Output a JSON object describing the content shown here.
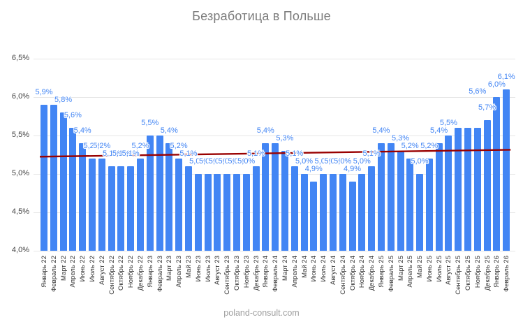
{
  "title": "Безработица в Польше",
  "watermark": "poland-consult.com",
  "colors": {
    "background": "#ffffff",
    "bar": "#4285f4",
    "bar_label": "#4285f4",
    "trendline": "#990000",
    "grid": "#e6e6e6",
    "y_axis_text": "#444444",
    "x_axis_text": "#333333",
    "title_text": "#7b7b7b",
    "watermark_text": "#9e9e9e"
  },
  "chart_data": {
    "type": "bar",
    "title": "Безработица в Польше",
    "xlabel": "",
    "ylabel": "",
    "ylim": [
      4.0,
      6.5
    ],
    "grid": true,
    "legend": "none",
    "y_ticks": [
      6.5,
      6.0,
      5.5,
      5.0,
      4.5,
      4.0
    ],
    "y_tick_labels": [
      "6,5%",
      "6,0%",
      "5,5%",
      "5,0%",
      "4,5%",
      "4,0%"
    ],
    "categories": [
      "Январь 22",
      "Февраль 22",
      "Март 22",
      "Апрель 22",
      "Июнь 22",
      "Июль 22",
      "Август 22",
      "Сентябрь 22",
      "Октябрь 22",
      "Ноябрь 22",
      "Декабрь 22",
      "Январь 23",
      "Февраль 23",
      "Март 23",
      "Апрель 23",
      "Май 23",
      "Июнь 23",
      "Июль 23",
      "Август 23",
      "Сентябрь 23",
      "Октябрь 23",
      "Ноябрь 23",
      "Декабрь 23",
      "Январь 24",
      "Февраль 24",
      "Март 24",
      "Апрель 24",
      "Май 24",
      "Июнь 24",
      "Июль 24",
      "Август 24",
      "Сентябрь 24",
      "Октябрь 24",
      "Ноябрь 24",
      "Декабрь 24",
      "Январь 25",
      "Февраль 25",
      "Март 25",
      "Апрель 25",
      "Май 25",
      "Июнь 25",
      "Июль 25",
      "Август 25",
      "Сентябрь 25",
      "Октябрь 25",
      "Ноябрь 25",
      "Декабрь 25",
      "Январь 26",
      "Февраль 26"
    ],
    "values": [
      5.9,
      5.9,
      5.8,
      5.6,
      5.4,
      5.2,
      5.2,
      5.1,
      5.1,
      5.1,
      5.2,
      5.5,
      5.5,
      5.4,
      5.2,
      5.1,
      5.0,
      5.0,
      5.0,
      5.0,
      5.0,
      5.0,
      5.1,
      5.4,
      5.4,
      5.3,
      5.1,
      5.0,
      4.9,
      5.0,
      5.0,
      5.0,
      4.9,
      5.0,
      5.1,
      5.4,
      5.4,
      5.3,
      5.2,
      5.0,
      5.2,
      5.4,
      5.5,
      5.6,
      5.6,
      5.6,
      5.7,
      6.0,
      6.1
    ],
    "bar_labels": [
      "5,9%",
      "",
      "5,8%",
      "5,6%",
      "5,4%",
      "5,2%",
      "5,2%",
      "5,1%",
      "5,1%",
      "5,1%",
      "5,2%",
      "5,5%",
      "",
      "5,4%",
      "5,2%",
      "5,1%",
      "5,0%",
      "5,0%",
      "5,0%",
      "5,0%",
      "5,0%",
      "5,0%",
      "5,1%",
      "5,4%",
      "",
      "5,3%",
      "5,1%",
      "5,0%",
      "4,9%",
      "5,0%",
      "5,0%",
      "5,0%",
      "4,9%",
      "5,0%",
      "5,1%",
      "5,4%",
      "",
      "5,3%",
      "5,2%",
      "5,0%",
      "5,2%",
      "5,4%",
      "5,5%",
      "",
      "",
      "5,6%",
      "5,7%",
      "6,0%",
      "6,1%"
    ],
    "label_y_offsets": {
      "45": -34
    },
    "trendline": {
      "start_value": 5.22,
      "end_value": 5.31,
      "color": "#990000"
    }
  }
}
